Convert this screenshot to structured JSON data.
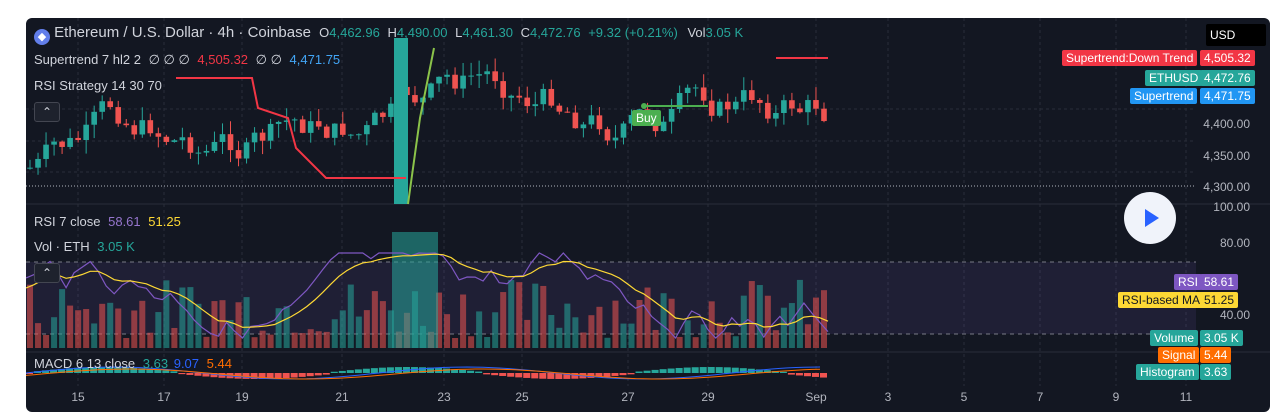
{
  "header": {
    "symbol_title": "Ethereum / U.S. Dollar · 4h · Coinbase",
    "o_label": "O",
    "o_value": "4,462.96",
    "h_label": "H",
    "h_value": "4,490.00",
    "l_label": "L",
    "l_value": "4,461.30",
    "c_label": "C",
    "c_value": "4,472.76",
    "change": "+9.32 (+0.21%)",
    "vol_label": "Vol",
    "vol_value": "3.05 K",
    "currency": "USD"
  },
  "indicators": {
    "supertrend_name": "Supertrend 7 hl2 2",
    "supertrend_empties": "∅ ∅ ∅",
    "supertrend_down": "4,505.32",
    "supertrend_empties2": "∅ ∅",
    "supertrend_up": "4,471.75",
    "rsi_strategy": "RSI Strategy 14 30 70",
    "rsi_name": "RSI 7 close",
    "rsi_value": "58.61",
    "rsi_ma_value": "51.25",
    "vol_name": "Vol · ETH",
    "vol_value": "3.05 K",
    "macd_name": "MACD 6 13 close",
    "macd_hist": "3.63",
    "macd_line": "9.07",
    "macd_signal": "5.44"
  },
  "buy_label": "Buy",
  "price_badges": {
    "supertrend_down_label": "Supertrend:Down Trend",
    "supertrend_down_value": "4,505.32",
    "ethusd_label": "ETHUSD",
    "ethusd_value": "4,472.76",
    "supertrend_label": "Supertrend",
    "supertrend_value": "4,471.75"
  },
  "price_axis": [
    "4,400.00",
    "4,350.00",
    "4,300.00"
  ],
  "rsi_axis": [
    "100.00",
    "80.00",
    "40.00"
  ],
  "pane_badges": {
    "rsi_label": "RSI",
    "rsi_value": "58.61",
    "rsima_label": "RSI-based MA",
    "rsima_value": "51.25",
    "volume_label": "Volume",
    "volume_value": "3.05 K",
    "signal_label": "Signal",
    "signal_value": "5.44",
    "histogram_label": "Histogram",
    "histogram_value": "3.63"
  },
  "x_ticks": [
    "15",
    "17",
    "19",
    "21",
    "23",
    "25",
    "27",
    "29",
    "Sep",
    "3",
    "5",
    "7",
    "9",
    "11"
  ],
  "colors": {
    "up": "#26a69a",
    "down": "#ef5350",
    "supertrend_down": "#f23645",
    "supertrend_up": "#2962ff",
    "rsi": "#7e57c2",
    "rsi_ma": "#fdd835",
    "macd": "#2962ff",
    "signal": "#ff6d00",
    "buy": "#4caf50",
    "background": "#131722"
  },
  "chart_data": {
    "type": "candlestick",
    "x_ticks": [
      "15",
      "17",
      "19",
      "21",
      "23",
      "25",
      "27",
      "29",
      "Sep"
    ],
    "price_ylim": [
      4280,
      4520
    ],
    "rsi_ylim": [
      20,
      100
    ],
    "grid": true,
    "series": [
      {
        "name": "ETHUSD",
        "last": 4472.76
      },
      {
        "name": "RSI",
        "last": 58.61
      },
      {
        "name": "RSI-based MA",
        "last": 51.25
      }
    ]
  }
}
